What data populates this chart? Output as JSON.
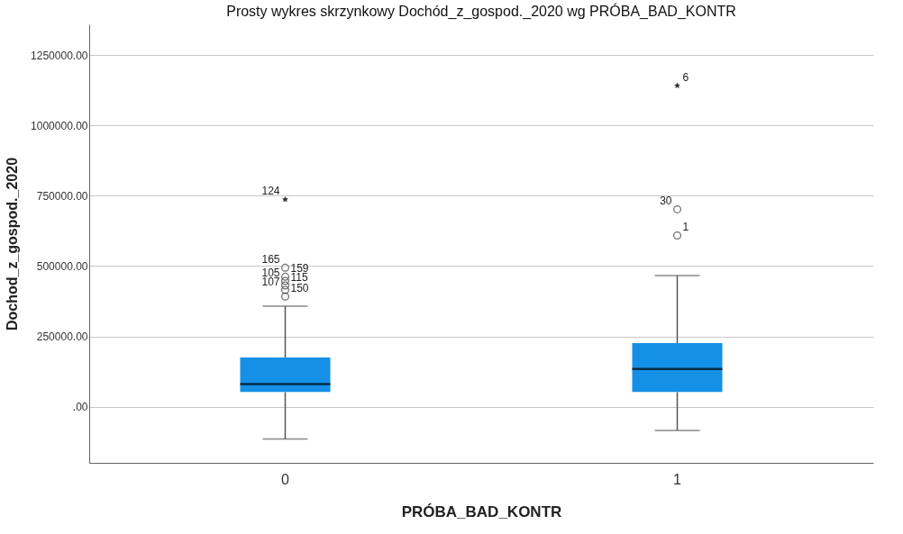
{
  "chart_data": {
    "type": "box",
    "title": "Prosty wykres skrzynkowy  Dochód_z_gospod._2020 wg PRÓBA_BAD_KONTR",
    "xlabel": "PRÓBA_BAD_KONTR",
    "ylabel": "Dochod_z_gospod._2020",
    "categories": [
      "0",
      "1"
    ],
    "series": [
      {
        "color": "#1490e6",
        "boxes": [
          {
            "low": -115000,
            "q1": 52000,
            "median": 80000,
            "q3": 175000,
            "high": 357000,
            "outliers": [
              494000,
              462000,
              447000,
              431000,
              415000,
              392000
            ]
          },
          {
            "low": -85000,
            "q1": 52000,
            "median": 134000,
            "q3": 226000,
            "high": 466000,
            "outliers": [
              702000,
              609000
            ]
          }
        ]
      },
      {
        "type": "scatter",
        "marker": "star",
        "color": "#333333",
        "x": [
          "0",
          "1"
        ],
        "values": [
          737000,
          1142000
        ]
      }
    ],
    "ylim": [
      -200000,
      1360000
    ],
    "yticks": [
      {
        "value": 0,
        "label": ".00"
      },
      {
        "value": 250000,
        "label": "250000.00"
      },
      {
        "value": 500000,
        "label": "500000.00"
      },
      {
        "value": 750000,
        "label": "750000.00"
      },
      {
        "value": 1000000,
        "label": "1000000.00"
      },
      {
        "value": 1250000,
        "label": "1250000.00"
      }
    ],
    "grid": "y",
    "annotations": [
      "165",
      "159",
      "105",
      "115",
      "107",
      "150",
      "30",
      "1",
      "124",
      "6"
    ]
  }
}
